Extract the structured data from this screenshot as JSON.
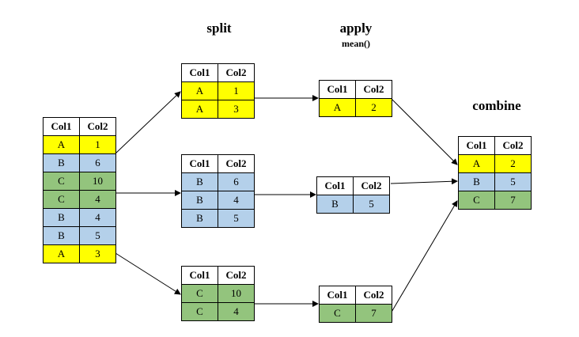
{
  "labels": {
    "split": "split",
    "apply": "apply",
    "apply_fn": "mean()",
    "combine": "combine"
  },
  "colors": {
    "A": "#ffff00",
    "B": "#b4d0ea",
    "C": "#93c47d"
  },
  "tables": {
    "source": {
      "headers": [
        "Col1",
        "Col2"
      ],
      "rows": [
        [
          "A",
          "1"
        ],
        [
          "B",
          "6"
        ],
        [
          "C",
          "10"
        ],
        [
          "C",
          "4"
        ],
        [
          "B",
          "4"
        ],
        [
          "B",
          "5"
        ],
        [
          "A",
          "3"
        ]
      ]
    },
    "split_a": {
      "headers": [
        "Col1",
        "Col2"
      ],
      "rows": [
        [
          "A",
          "1"
        ],
        [
          "A",
          "3"
        ]
      ]
    },
    "split_b": {
      "headers": [
        "Col1",
        "Col2"
      ],
      "rows": [
        [
          "B",
          "6"
        ],
        [
          "B",
          "4"
        ],
        [
          "B",
          "5"
        ]
      ]
    },
    "split_c": {
      "headers": [
        "Col1",
        "Col2"
      ],
      "rows": [
        [
          "C",
          "10"
        ],
        [
          "C",
          "4"
        ]
      ]
    },
    "apply_a": {
      "headers": [
        "Col1",
        "Col2"
      ],
      "rows": [
        [
          "A",
          "2"
        ]
      ]
    },
    "apply_b": {
      "headers": [
        "Col1",
        "Col2"
      ],
      "rows": [
        [
          "B",
          "5"
        ]
      ]
    },
    "apply_c": {
      "headers": [
        "Col1",
        "Col2"
      ],
      "rows": [
        [
          "C",
          "7"
        ]
      ]
    },
    "combined": {
      "headers": [
        "Col1",
        "Col2"
      ],
      "rows": [
        [
          "A",
          "2"
        ],
        [
          "B",
          "5"
        ],
        [
          "C",
          "7"
        ]
      ]
    }
  }
}
